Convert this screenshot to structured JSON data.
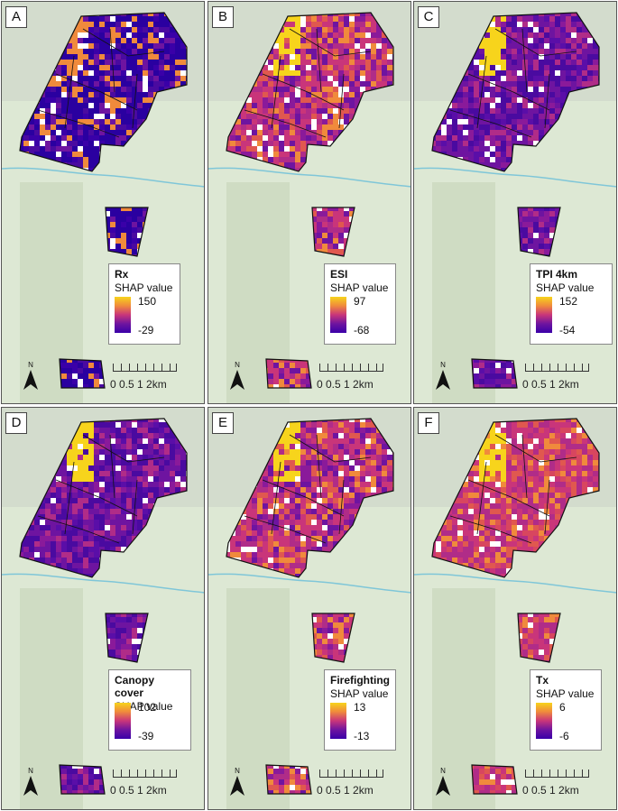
{
  "figure": {
    "panels": [
      {
        "letter": "A",
        "title": "Rx",
        "subtitle": "SHAP value",
        "max": "150",
        "min": "-29",
        "style": "dark"
      },
      {
        "letter": "B",
        "title": "ESI",
        "subtitle": "SHAP value",
        "max": "97",
        "min": "-68",
        "style": "mixed"
      },
      {
        "letter": "C",
        "title": "TPI 4km",
        "subtitle": "SHAP value",
        "max": "152",
        "min": "-54",
        "style": "purple"
      },
      {
        "letter": "D",
        "title": "Canopy cover",
        "subtitle": "SHAP value",
        "max": "102",
        "min": "-39",
        "style": "purple"
      },
      {
        "letter": "E",
        "title": "Firefighting",
        "subtitle": "SHAP value",
        "max": "13",
        "min": "-13",
        "style": "mixed"
      },
      {
        "letter": "F",
        "title": "Tx",
        "subtitle": "SHAP value",
        "max": "6",
        "min": "-6",
        "style": "warm"
      }
    ],
    "scale_text": "0 0.5 1      2km",
    "north_label": "N",
    "colors": {
      "ramp_high": "#f7d41c",
      "ramp_mid": "#c9357a",
      "ramp_low": "#3a00a8",
      "river": "#7fc6d8",
      "basemap": "#dde8d4"
    }
  }
}
